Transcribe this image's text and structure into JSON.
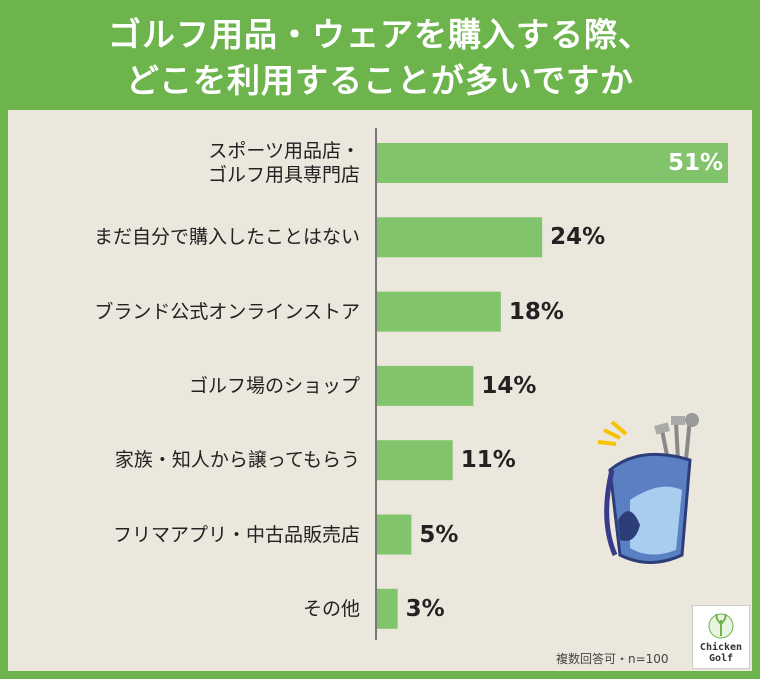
{
  "chart_data": {
    "type": "hbar",
    "title": "ゴルフ用品・ウェアを購入する際、\nどこを利用することが多いですか",
    "categories": [
      "スポーツ用品店・\nゴルフ用具専門店",
      "まだ自分で購入したことはない",
      "ブランド公式オンラインストア",
      "ゴルフ場のショップ",
      "家族・知人から譲ってもらう",
      "フリマアプリ・中古品販売店",
      "その他"
    ],
    "values": [
      51,
      24,
      18,
      14,
      11,
      5,
      3
    ],
    "value_labels": [
      "51%",
      "24%",
      "18%",
      "14%",
      "11%",
      "5%",
      "3%"
    ],
    "color": "#82c46c",
    "note": "複数回答可・n=100"
  },
  "logo": {
    "text": "Chicken\nGolf"
  }
}
